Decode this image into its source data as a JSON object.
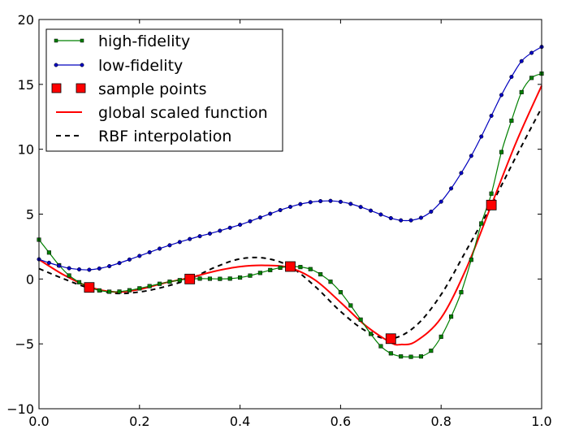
{
  "chart_data": {
    "type": "line",
    "title": "",
    "xlabel": "",
    "ylabel": "",
    "xlim": [
      0.0,
      1.0
    ],
    "ylim": [
      -10,
      20
    ],
    "x_ticks": [
      "0.0",
      "0.2",
      "0.4",
      "0.6",
      "0.8",
      "1.0"
    ],
    "y_ticks": [
      "−10",
      "−5",
      "0",
      "5",
      "10",
      "15",
      "20"
    ],
    "grid": false,
    "legend_position": "top-left",
    "series": [
      {
        "name": "high-fidelity",
        "color": "#008000",
        "marker": "square",
        "x": [
          0.0,
          0.02,
          0.04,
          0.06,
          0.08,
          0.1,
          0.12,
          0.14,
          0.16,
          0.18,
          0.2,
          0.22,
          0.24,
          0.26,
          0.28,
          0.3,
          0.32,
          0.34,
          0.36,
          0.38,
          0.4,
          0.42,
          0.44,
          0.46,
          0.48,
          0.5,
          0.52,
          0.54,
          0.56,
          0.58,
          0.6,
          0.62,
          0.64,
          0.66,
          0.68,
          0.7,
          0.72,
          0.74,
          0.76,
          0.78,
          0.8,
          0.82,
          0.84,
          0.86,
          0.88,
          0.9,
          0.92,
          0.94,
          0.96,
          0.98,
          1.0
        ],
        "y": [
          3.03,
          2.04,
          1.06,
          0.27,
          -0.25,
          -0.65,
          -0.88,
          -0.98,
          -0.97,
          -0.87,
          -0.72,
          -0.55,
          -0.37,
          -0.21,
          -0.09,
          0.0,
          0.03,
          0.02,
          0.01,
          0.03,
          0.11,
          0.26,
          0.47,
          0.69,
          0.87,
          0.96,
          0.92,
          0.76,
          0.36,
          -0.21,
          -1.02,
          -2.04,
          -3.13,
          -4.23,
          -5.18,
          -5.73,
          -5.97,
          -6.0,
          -5.97,
          -5.53,
          -4.45,
          -2.9,
          -1.02,
          1.48,
          4.28,
          6.58,
          9.78,
          12.2,
          14.4,
          15.5,
          15.83
        ]
      },
      {
        "name": "low-fidelity",
        "color": "#0000bf",
        "marker": "circle",
        "x": [
          0.0,
          0.02,
          0.04,
          0.06,
          0.08,
          0.1,
          0.12,
          0.14,
          0.16,
          0.18,
          0.2,
          0.22,
          0.24,
          0.26,
          0.28,
          0.3,
          0.32,
          0.34,
          0.36,
          0.38,
          0.4,
          0.42,
          0.44,
          0.46,
          0.48,
          0.5,
          0.52,
          0.54,
          0.56,
          0.58,
          0.6,
          0.62,
          0.64,
          0.66,
          0.68,
          0.7,
          0.72,
          0.74,
          0.76,
          0.78,
          0.8,
          0.82,
          0.84,
          0.86,
          0.88,
          0.9,
          0.92,
          0.94,
          0.96,
          0.98,
          1.0
        ],
        "y": [
          1.52,
          1.25,
          1.02,
          0.83,
          0.74,
          0.71,
          0.81,
          0.99,
          1.23,
          1.5,
          1.78,
          2.06,
          2.34,
          2.6,
          2.85,
          3.08,
          3.3,
          3.5,
          3.72,
          3.95,
          4.18,
          4.45,
          4.74,
          5.03,
          5.31,
          5.56,
          5.77,
          5.92,
          6.0,
          6.02,
          5.95,
          5.79,
          5.55,
          5.27,
          4.97,
          4.69,
          4.52,
          4.52,
          4.72,
          5.19,
          5.96,
          6.98,
          8.17,
          9.49,
          10.98,
          12.58,
          14.18,
          15.58,
          16.79,
          17.43,
          17.89
        ]
      },
      {
        "name": "sample points",
        "color": "#ff0000",
        "marker": "square-large",
        "x": [
          0.1,
          0.3,
          0.5,
          0.7,
          0.9
        ],
        "y": [
          -0.65,
          0.0,
          0.96,
          -4.6,
          5.7
        ]
      },
      {
        "name": "global scaled function",
        "color": "#ff0000",
        "marker": "none",
        "x": [
          0.0,
          0.05,
          0.1,
          0.15,
          0.2,
          0.25,
          0.3,
          0.35,
          0.4,
          0.45,
          0.5,
          0.55,
          0.6,
          0.65,
          0.7,
          0.72,
          0.75,
          0.8,
          0.85,
          0.9,
          0.95,
          1.0
        ],
        "y": [
          1.5,
          0.3,
          -0.6,
          -1.0,
          -0.8,
          -0.3,
          0.1,
          0.6,
          0.95,
          1.05,
          0.85,
          -0.1,
          -1.8,
          -3.6,
          -4.9,
          -5.05,
          -4.8,
          -3.0,
          0.8,
          5.7,
          10.6,
          14.9
        ]
      },
      {
        "name": "RBF interpolation",
        "color": "#000000",
        "marker": "none",
        "dashed": true,
        "x": [
          0.0,
          0.05,
          0.1,
          0.15,
          0.2,
          0.25,
          0.3,
          0.35,
          0.4,
          0.45,
          0.5,
          0.55,
          0.6,
          0.65,
          0.7,
          0.75,
          0.8,
          0.85,
          0.9,
          0.95,
          1.0
        ],
        "y": [
          0.8,
          0.0,
          -0.7,
          -1.1,
          -1.0,
          -0.6,
          0.0,
          0.9,
          1.55,
          1.6,
          0.95,
          -0.6,
          -2.5,
          -4.0,
          -4.6,
          -3.6,
          -1.2,
          2.2,
          5.7,
          9.5,
          13.2
        ]
      }
    ]
  }
}
